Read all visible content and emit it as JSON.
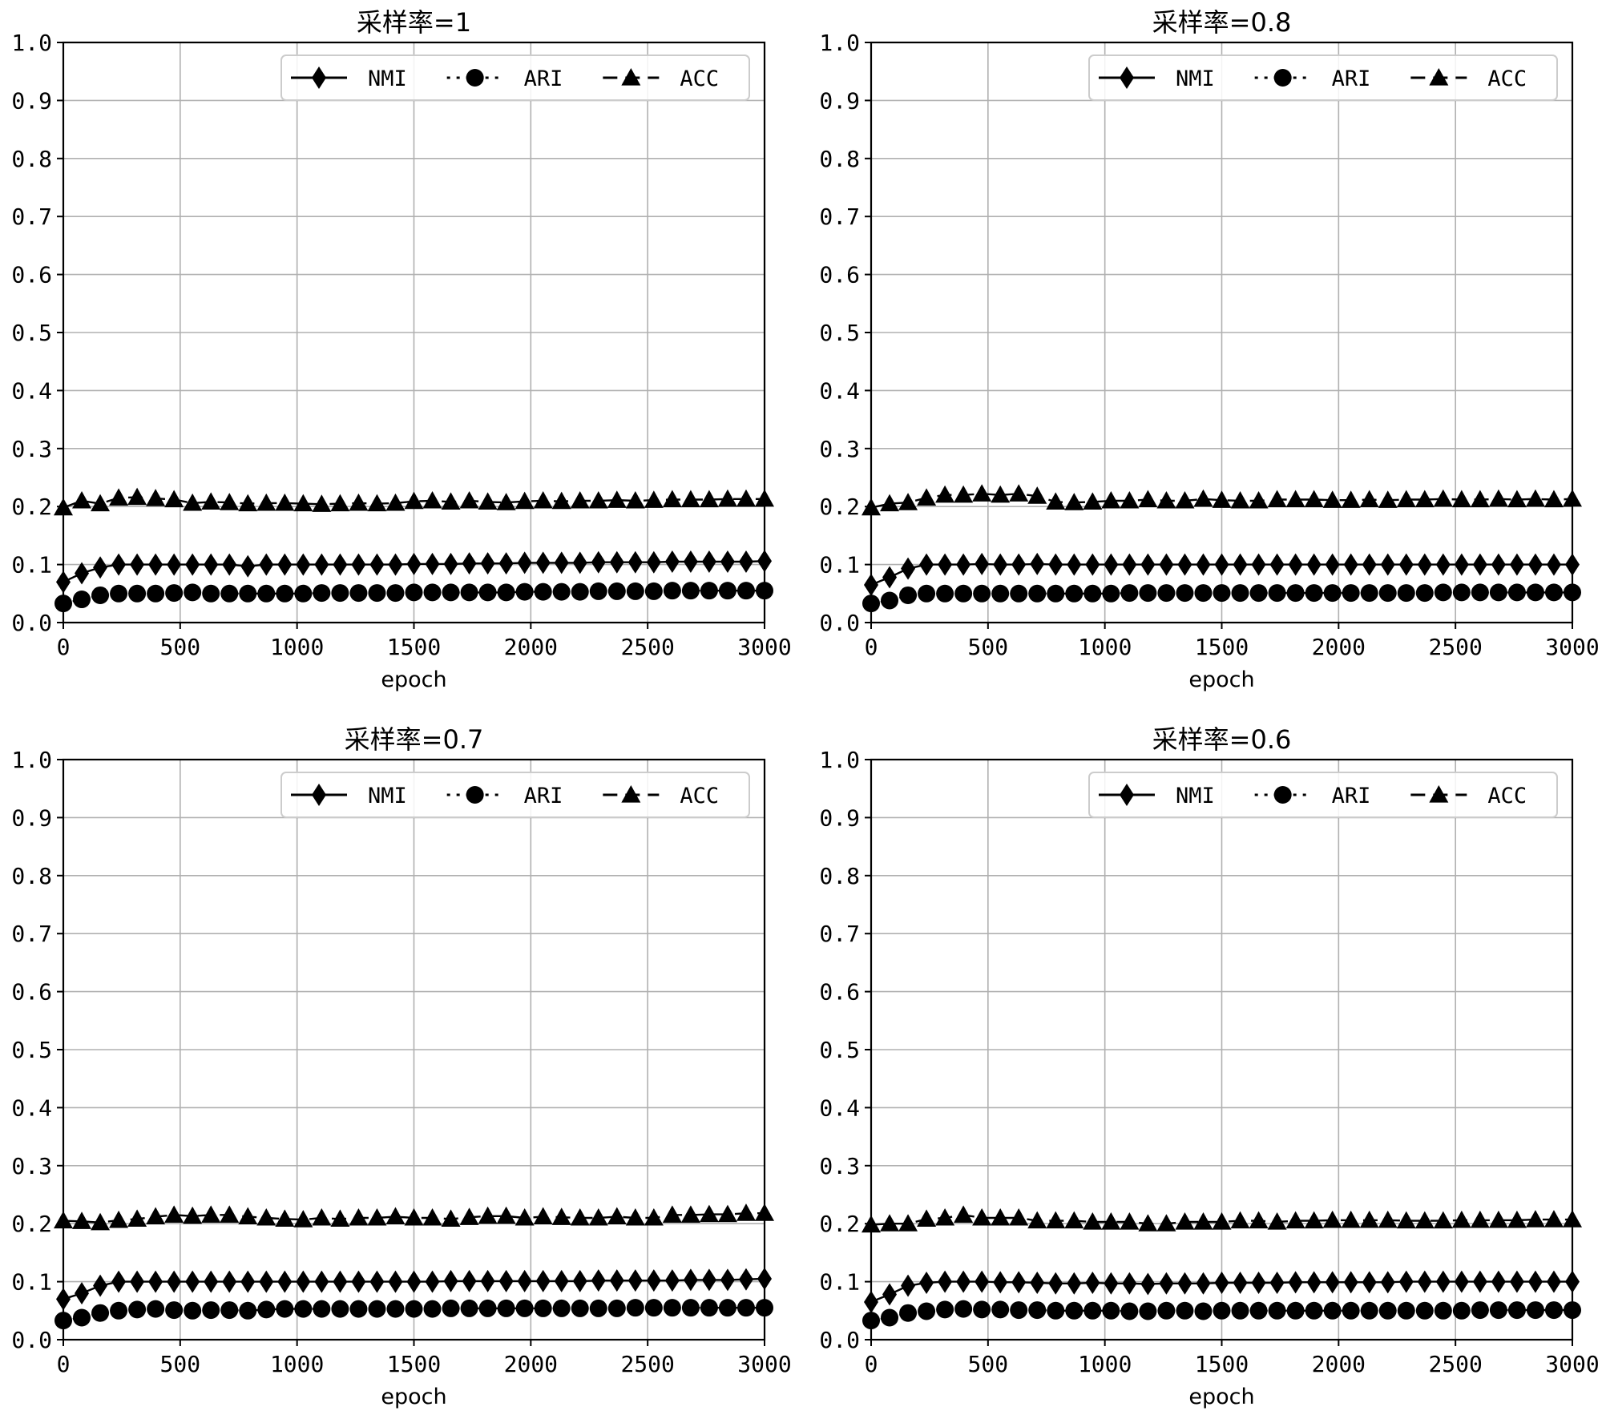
{
  "chart_data": [
    {
      "type": "line",
      "title": "采样率=1",
      "xlabel": "epoch",
      "ylabel": "",
      "xlim": [
        0,
        3000
      ],
      "ylim": [
        0.0,
        1.0
      ],
      "xticks": [
        "0",
        "500",
        "1000",
        "1500",
        "2000",
        "2500",
        "3000"
      ],
      "yticks": [
        "0.0",
        "0.1",
        "0.2",
        "0.3",
        "0.4",
        "0.5",
        "0.6",
        "0.7",
        "0.8",
        "0.9",
        "1.0"
      ],
      "grid": true,
      "legend_position": "upper-right",
      "series": [
        {
          "name": "NMI",
          "marker": "diamond",
          "line": "solid",
          "values": [
            0.07,
            0.085,
            0.095,
            0.1,
            0.1,
            0.1,
            0.1,
            0.1,
            0.1,
            0.1,
            0.097,
            0.1,
            0.1,
            0.1,
            0.1,
            0.1,
            0.1,
            0.1,
            0.1,
            0.101,
            0.101,
            0.101,
            0.102,
            0.102,
            0.102,
            0.103,
            0.103,
            0.103,
            0.103,
            0.104,
            0.104,
            0.104,
            0.104,
            0.105,
            0.105,
            0.105,
            0.105,
            0.105,
            0.106
          ]
        },
        {
          "name": "ARI",
          "marker": "circle",
          "line": "dotted",
          "values": [
            0.033,
            0.04,
            0.047,
            0.05,
            0.05,
            0.05,
            0.051,
            0.052,
            0.05,
            0.05,
            0.05,
            0.05,
            0.05,
            0.05,
            0.051,
            0.051,
            0.051,
            0.051,
            0.051,
            0.052,
            0.052,
            0.052,
            0.052,
            0.052,
            0.052,
            0.053,
            0.053,
            0.053,
            0.053,
            0.054,
            0.054,
            0.054,
            0.054,
            0.055,
            0.055,
            0.055,
            0.055,
            0.055,
            0.055
          ]
        },
        {
          "name": "ACC",
          "marker": "triangle",
          "line": "dashed",
          "values": [
            0.198,
            0.21,
            0.205,
            0.215,
            0.216,
            0.214,
            0.212,
            0.206,
            0.208,
            0.207,
            0.205,
            0.206,
            0.206,
            0.205,
            0.204,
            0.205,
            0.206,
            0.205,
            0.206,
            0.209,
            0.21,
            0.208,
            0.21,
            0.208,
            0.207,
            0.209,
            0.21,
            0.209,
            0.21,
            0.21,
            0.211,
            0.21,
            0.211,
            0.212,
            0.212,
            0.212,
            0.213,
            0.213,
            0.213
          ]
        }
      ]
    },
    {
      "type": "line",
      "title": "采样率=0.8",
      "xlabel": "epoch",
      "ylabel": "",
      "xlim": [
        0,
        3000
      ],
      "ylim": [
        0.0,
        1.0
      ],
      "xticks": [
        "0",
        "500",
        "1000",
        "1500",
        "2000",
        "2500",
        "3000"
      ],
      "yticks": [
        "0.0",
        "0.1",
        "0.2",
        "0.3",
        "0.4",
        "0.5",
        "0.6",
        "0.7",
        "0.8",
        "0.9",
        "1.0"
      ],
      "grid": true,
      "legend_position": "upper-right",
      "series": [
        {
          "name": "NMI",
          "marker": "diamond",
          "line": "solid",
          "values": [
            0.065,
            0.078,
            0.093,
            0.1,
            0.1,
            0.1,
            0.101,
            0.1,
            0.1,
            0.101,
            0.1,
            0.1,
            0.1,
            0.1,
            0.1,
            0.1,
            0.1,
            0.1,
            0.1,
            0.1,
            0.1,
            0.1,
            0.1,
            0.1,
            0.1,
            0.1,
            0.1,
            0.1,
            0.1,
            0.1,
            0.1,
            0.1,
            0.1,
            0.1,
            0.1,
            0.1,
            0.1,
            0.1,
            0.1
          ]
        },
        {
          "name": "ARI",
          "marker": "circle",
          "line": "dotted",
          "values": [
            0.033,
            0.038,
            0.047,
            0.05,
            0.05,
            0.05,
            0.05,
            0.05,
            0.05,
            0.05,
            0.05,
            0.05,
            0.05,
            0.05,
            0.051,
            0.051,
            0.051,
            0.051,
            0.051,
            0.051,
            0.051,
            0.051,
            0.051,
            0.051,
            0.051,
            0.051,
            0.051,
            0.051,
            0.051,
            0.051,
            0.051,
            0.052,
            0.052,
            0.052,
            0.052,
            0.052,
            0.052,
            0.052,
            0.052
          ]
        },
        {
          "name": "ACC",
          "marker": "triangle",
          "line": "dashed",
          "values": [
            0.198,
            0.205,
            0.207,
            0.215,
            0.22,
            0.22,
            0.222,
            0.22,
            0.222,
            0.218,
            0.208,
            0.207,
            0.208,
            0.21,
            0.21,
            0.212,
            0.21,
            0.21,
            0.213,
            0.211,
            0.21,
            0.21,
            0.212,
            0.212,
            0.212,
            0.211,
            0.211,
            0.212,
            0.211,
            0.212,
            0.212,
            0.213,
            0.212,
            0.212,
            0.213,
            0.212,
            0.213,
            0.212,
            0.213
          ]
        }
      ]
    },
    {
      "type": "line",
      "title": "采样率=0.7",
      "xlabel": "epoch",
      "ylabel": "",
      "xlim": [
        0,
        3000
      ],
      "ylim": [
        0.0,
        1.0
      ],
      "xticks": [
        "0",
        "500",
        "1000",
        "1500",
        "2000",
        "2500",
        "3000"
      ],
      "yticks": [
        "0.0",
        "0.1",
        "0.2",
        "0.3",
        "0.4",
        "0.5",
        "0.6",
        "0.7",
        "0.8",
        "0.9",
        "1.0"
      ],
      "grid": true,
      "legend_position": "upper-right",
      "series": [
        {
          "name": "NMI",
          "marker": "diamond",
          "line": "solid",
          "values": [
            0.07,
            0.08,
            0.093,
            0.1,
            0.1,
            0.1,
            0.1,
            0.1,
            0.1,
            0.1,
            0.1,
            0.1,
            0.1,
            0.1,
            0.1,
            0.1,
            0.1,
            0.1,
            0.1,
            0.1,
            0.1,
            0.101,
            0.101,
            0.101,
            0.101,
            0.101,
            0.101,
            0.101,
            0.101,
            0.102,
            0.102,
            0.102,
            0.102,
            0.102,
            0.103,
            0.103,
            0.103,
            0.104,
            0.105
          ]
        },
        {
          "name": "ARI",
          "marker": "circle",
          "line": "dotted",
          "values": [
            0.033,
            0.038,
            0.046,
            0.05,
            0.052,
            0.053,
            0.051,
            0.05,
            0.051,
            0.051,
            0.05,
            0.052,
            0.053,
            0.053,
            0.053,
            0.053,
            0.053,
            0.053,
            0.053,
            0.053,
            0.053,
            0.054,
            0.054,
            0.054,
            0.054,
            0.054,
            0.054,
            0.054,
            0.054,
            0.054,
            0.054,
            0.055,
            0.055,
            0.055,
            0.055,
            0.055,
            0.055,
            0.055,
            0.055
          ]
        },
        {
          "name": "ACC",
          "marker": "triangle",
          "line": "dashed",
          "values": [
            0.205,
            0.204,
            0.202,
            0.206,
            0.208,
            0.212,
            0.215,
            0.213,
            0.215,
            0.215,
            0.212,
            0.21,
            0.208,
            0.207,
            0.21,
            0.208,
            0.21,
            0.21,
            0.212,
            0.21,
            0.21,
            0.208,
            0.211,
            0.213,
            0.213,
            0.21,
            0.212,
            0.211,
            0.21,
            0.21,
            0.212,
            0.21,
            0.21,
            0.215,
            0.215,
            0.216,
            0.216,
            0.218,
            0.218
          ]
        }
      ]
    },
    {
      "type": "line",
      "title": "采样率=0.6",
      "xlabel": "epoch",
      "ylabel": "",
      "xlim": [
        0,
        3000
      ],
      "ylim": [
        0.0,
        1.0
      ],
      "xticks": [
        "0",
        "500",
        "1000",
        "1500",
        "2000",
        "2500",
        "3000"
      ],
      "yticks": [
        "0.0",
        "0.1",
        "0.2",
        "0.3",
        "0.4",
        "0.5",
        "0.6",
        "0.7",
        "0.8",
        "0.9",
        "1.0"
      ],
      "grid": true,
      "legend_position": "upper-right",
      "series": [
        {
          "name": "NMI",
          "marker": "diamond",
          "line": "solid",
          "values": [
            0.065,
            0.078,
            0.093,
            0.098,
            0.1,
            0.1,
            0.1,
            0.099,
            0.099,
            0.098,
            0.097,
            0.097,
            0.098,
            0.097,
            0.097,
            0.096,
            0.097,
            0.097,
            0.097,
            0.098,
            0.098,
            0.098,
            0.098,
            0.099,
            0.099,
            0.099,
            0.099,
            0.099,
            0.099,
            0.1,
            0.1,
            0.1,
            0.1,
            0.1,
            0.1,
            0.1,
            0.1,
            0.1,
            0.1
          ]
        },
        {
          "name": "ARI",
          "marker": "circle",
          "line": "dotted",
          "values": [
            0.033,
            0.038,
            0.046,
            0.049,
            0.052,
            0.053,
            0.052,
            0.052,
            0.051,
            0.051,
            0.05,
            0.05,
            0.05,
            0.05,
            0.049,
            0.049,
            0.05,
            0.05,
            0.049,
            0.05,
            0.05,
            0.05,
            0.05,
            0.05,
            0.05,
            0.05,
            0.05,
            0.05,
            0.05,
            0.05,
            0.05,
            0.05,
            0.05,
            0.051,
            0.051,
            0.051,
            0.051,
            0.051,
            0.051
          ]
        },
        {
          "name": "ACC",
          "marker": "triangle",
          "line": "dashed",
          "values": [
            0.198,
            0.2,
            0.2,
            0.208,
            0.21,
            0.215,
            0.21,
            0.21,
            0.21,
            0.205,
            0.205,
            0.205,
            0.203,
            0.203,
            0.203,
            0.2,
            0.2,
            0.203,
            0.203,
            0.203,
            0.205,
            0.205,
            0.203,
            0.205,
            0.205,
            0.206,
            0.206,
            0.206,
            0.206,
            0.205,
            0.205,
            0.205,
            0.206,
            0.206,
            0.206,
            0.206,
            0.207,
            0.207,
            0.207
          ]
        }
      ]
    }
  ]
}
